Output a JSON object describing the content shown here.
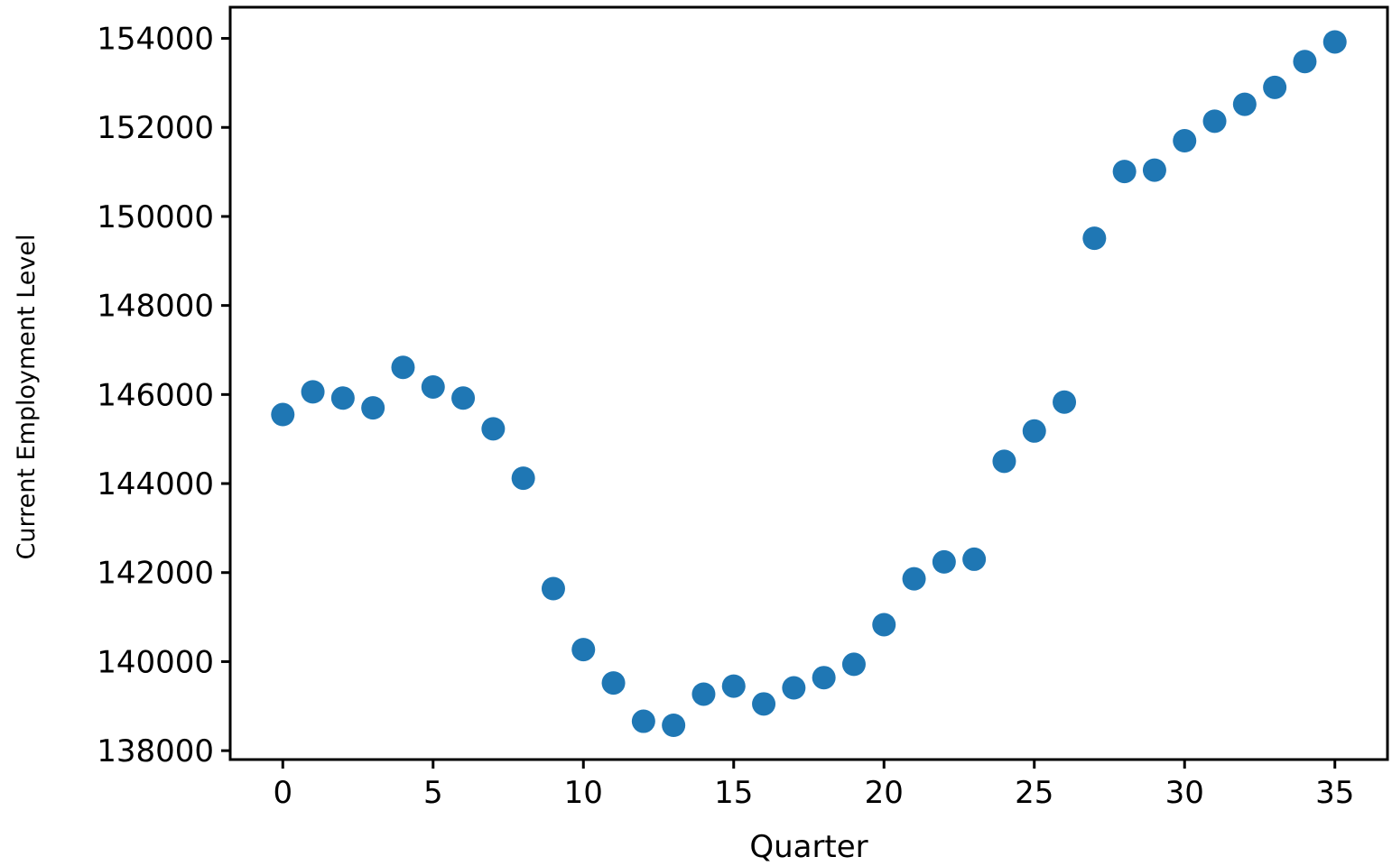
{
  "chart_data": {
    "type": "scatter",
    "title": "",
    "xlabel": "Quarter",
    "ylabel": "Current Employment Level",
    "xlim": [
      -1.75,
      36.75
    ],
    "ylim": [
      137800,
      154700
    ],
    "x_ticks": [
      0,
      5,
      10,
      15,
      20,
      25,
      30,
      35
    ],
    "x_tick_labels": [
      "0",
      "5",
      "10",
      "15",
      "20",
      "25",
      "30",
      "35"
    ],
    "y_ticks": [
      138000,
      140000,
      142000,
      144000,
      146000,
      148000,
      150000,
      152000,
      154000
    ],
    "y_tick_labels": [
      "138000",
      "140000",
      "142000",
      "144000",
      "146000",
      "148000",
      "150000",
      "152000",
      "154000"
    ],
    "grid": false,
    "legend": "none",
    "marker_color": "#1f77b4",
    "series": [
      {
        "x": [
          0,
          1,
          2,
          3,
          4,
          5,
          6,
          7,
          8,
          9,
          10,
          11,
          12,
          13,
          14,
          15,
          16,
          17,
          18,
          19,
          20,
          21,
          22,
          23,
          24,
          25,
          26,
          27,
          28,
          29,
          30,
          31,
          32,
          33,
          34,
          35
        ],
        "values": [
          145550,
          146060,
          145920,
          145700,
          146610,
          146170,
          145920,
          145230,
          144120,
          141640,
          140270,
          139520,
          138660,
          138570,
          139270,
          139450,
          139050,
          139410,
          139640,
          139940,
          140830,
          141860,
          142240,
          142300,
          144500,
          145180,
          145830,
          149510,
          151010,
          151040,
          151700,
          152140,
          152520,
          152900,
          153480,
          153920
        ]
      }
    ]
  }
}
